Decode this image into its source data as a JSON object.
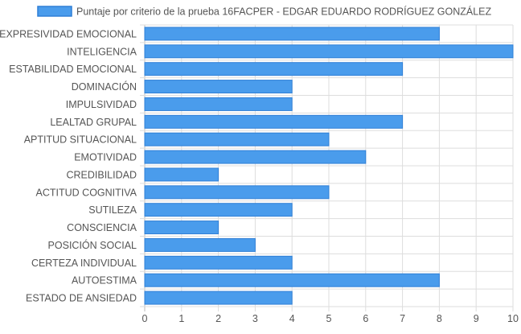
{
  "chart_data": {
    "type": "bar",
    "orientation": "horizontal",
    "categories": [
      "EXPRESIVIDAD EMOCIONAL",
      "INTELIGENCIA",
      "ESTABILIDAD EMOCIONAL",
      "DOMINACIÓN",
      "IMPULSIVIDAD",
      "LEALTAD GRUPAL",
      "APTITUD SITUACIONAL",
      "EMOTIVIDAD",
      "CREDIBILIDAD",
      "ACTITUD COGNITIVA",
      "SUTILEZA",
      "CONSCIENCIA",
      "POSICIÓN SOCIAL",
      "CERTEZA INDIVIDUAL",
      "AUTOESTIMA",
      "ESTADO DE ANSIEDAD"
    ],
    "series": [
      {
        "name": "Puntaje por criterio de la prueba 16FACPER - EDGAR EDUARDO RODRÍGUEZ GONZÁLEZ",
        "values": [
          8,
          10,
          7,
          4,
          4,
          7,
          5,
          6,
          2,
          5,
          4,
          2,
          3,
          4,
          8,
          4
        ]
      }
    ],
    "xlim": [
      0,
      10
    ],
    "xticks": [
      "0",
      "1",
      "2",
      "3",
      "4",
      "5",
      "6",
      "7",
      "8",
      "9",
      "10"
    ],
    "grid": true,
    "legend_position": "top-center",
    "colors": {
      "bar_fill": "#4a9cec",
      "bar_border": "#2f7fd6",
      "grid": "#dddddd",
      "text": "#555555"
    }
  }
}
